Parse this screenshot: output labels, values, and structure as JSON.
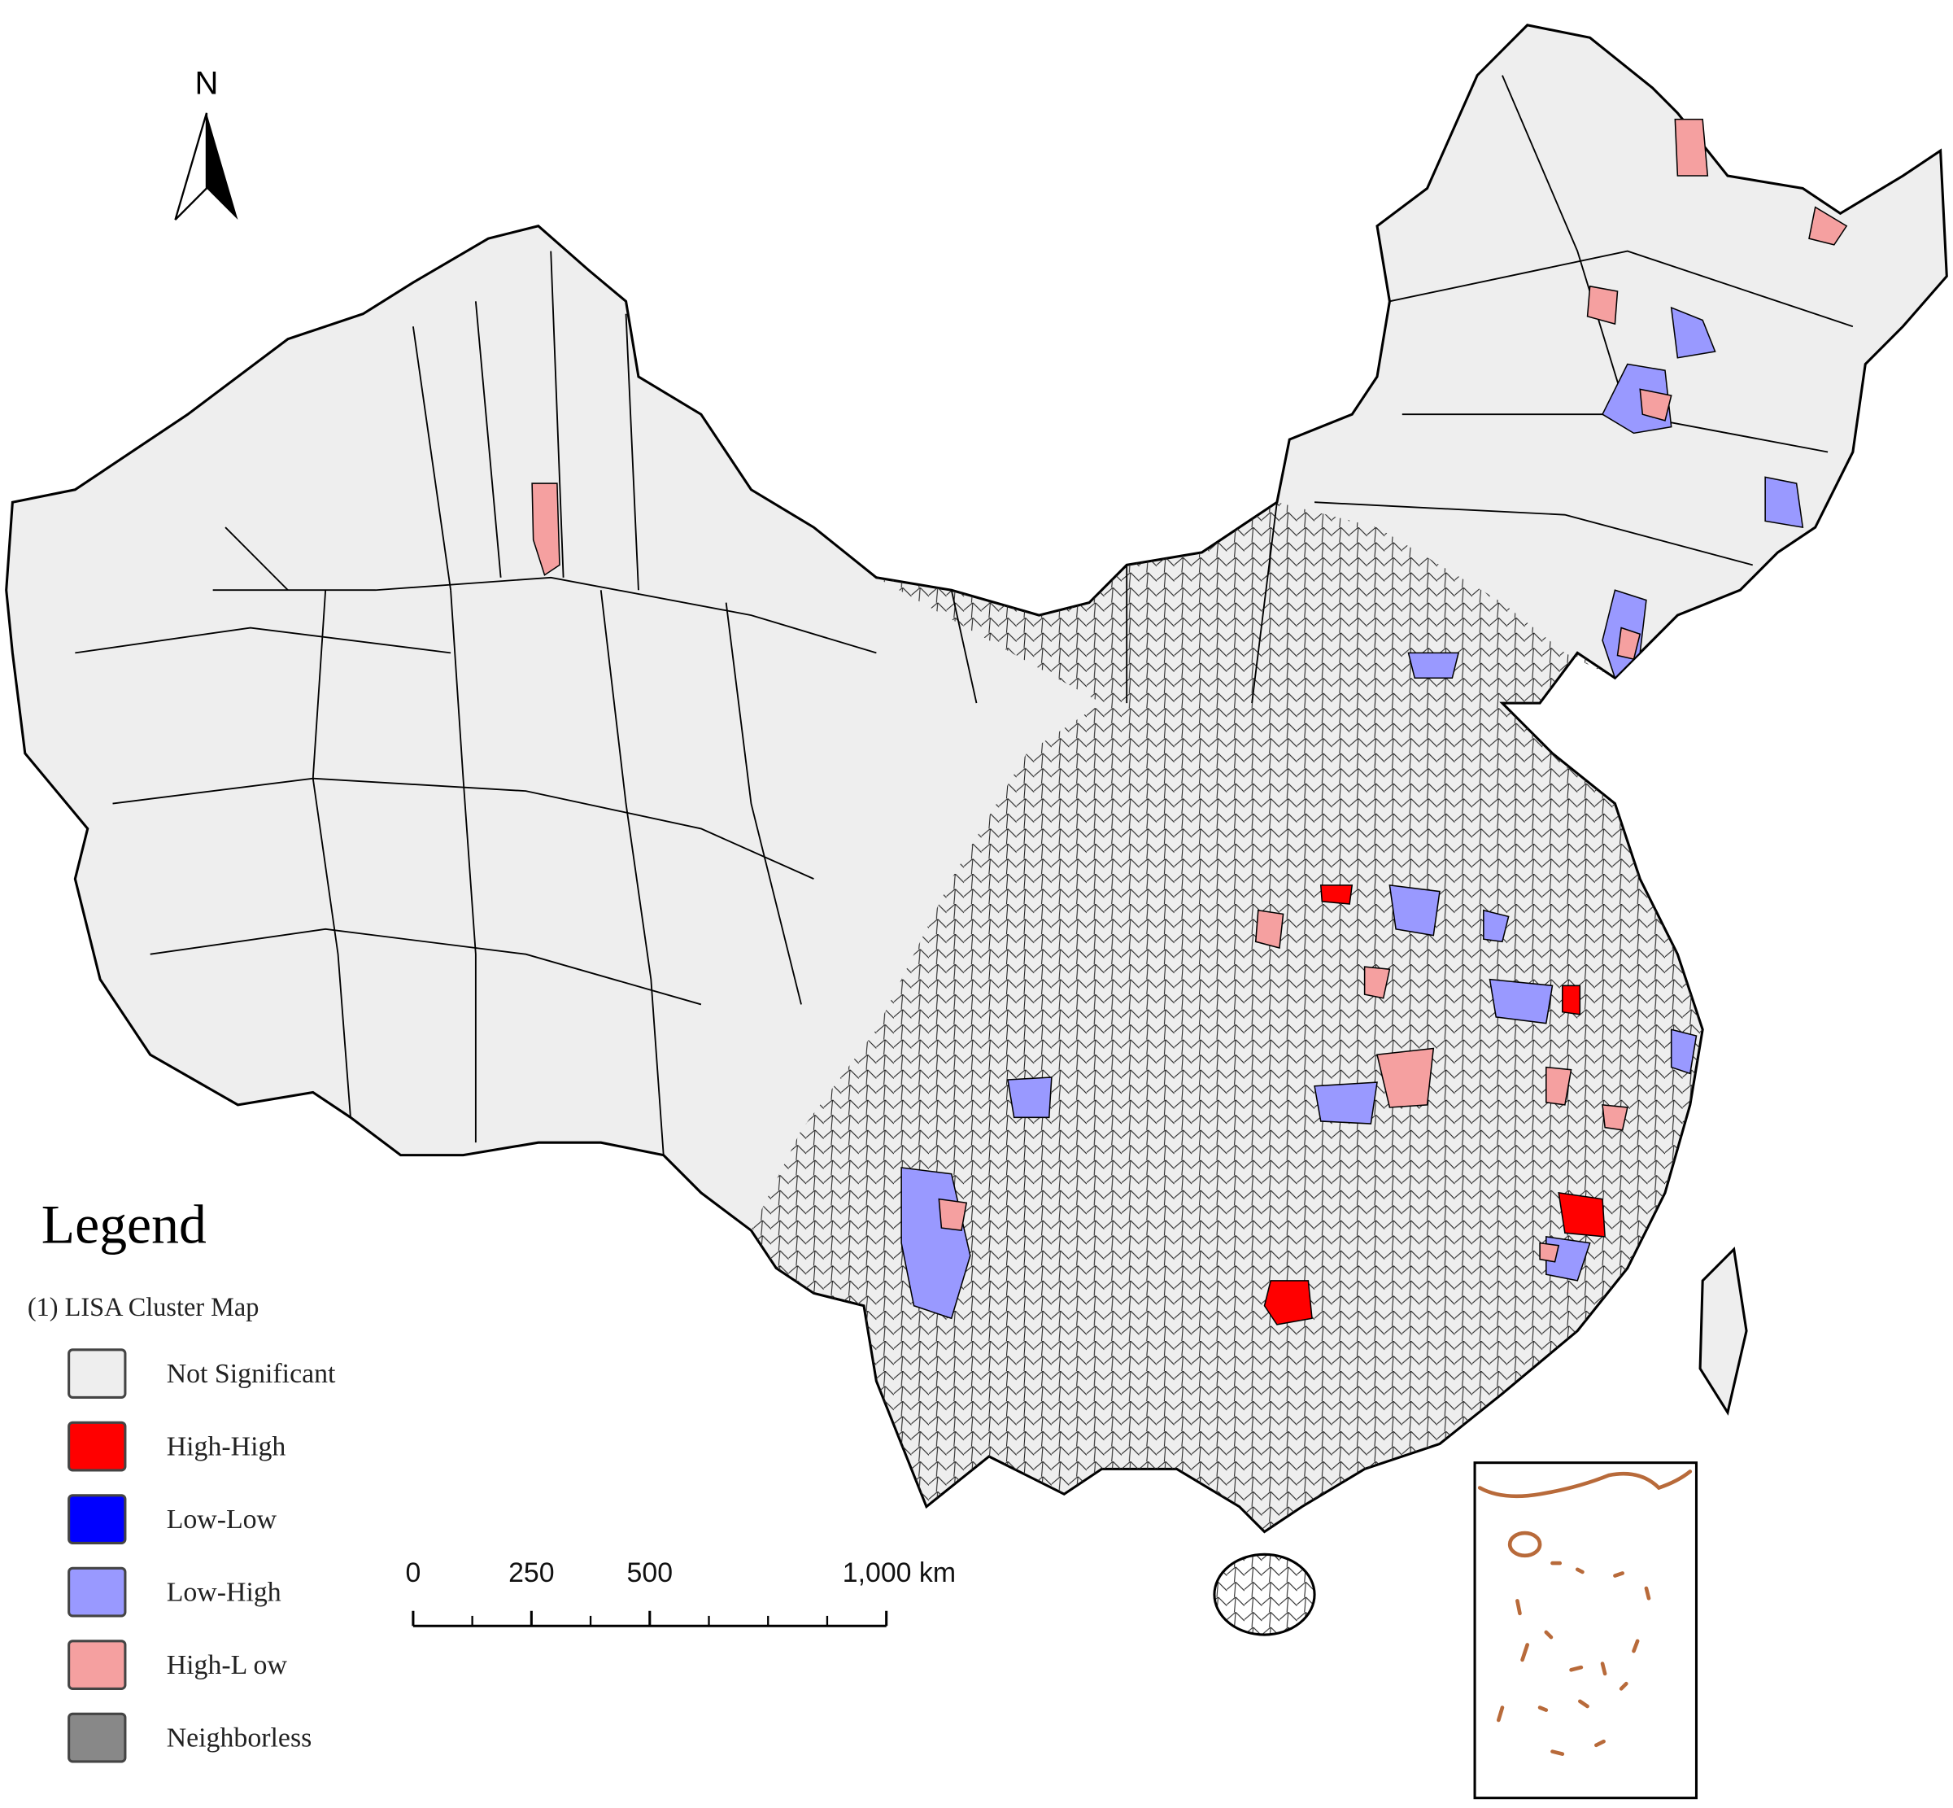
{
  "north_arrow": {
    "label": "N"
  },
  "legend": {
    "title": "Legend",
    "subtitle": "(1) LISA Cluster Map",
    "items": [
      {
        "label": "Not Significant",
        "color": "#eeeeee"
      },
      {
        "label": "High-High",
        "color": "#ff0000"
      },
      {
        "label": "Low-Low",
        "color": "#0000ff"
      },
      {
        "label": "Low-High",
        "color": "#9999ff"
      },
      {
        "label": "High-L ow",
        "color": "#f5a0a0"
      },
      {
        "label": "Neighborless",
        "color": "#888888"
      }
    ]
  },
  "scale_bar": {
    "ticks": [
      0,
      250,
      500,
      {
        "value": 1000,
        "label": "1,000 km"
      }
    ]
  }
}
